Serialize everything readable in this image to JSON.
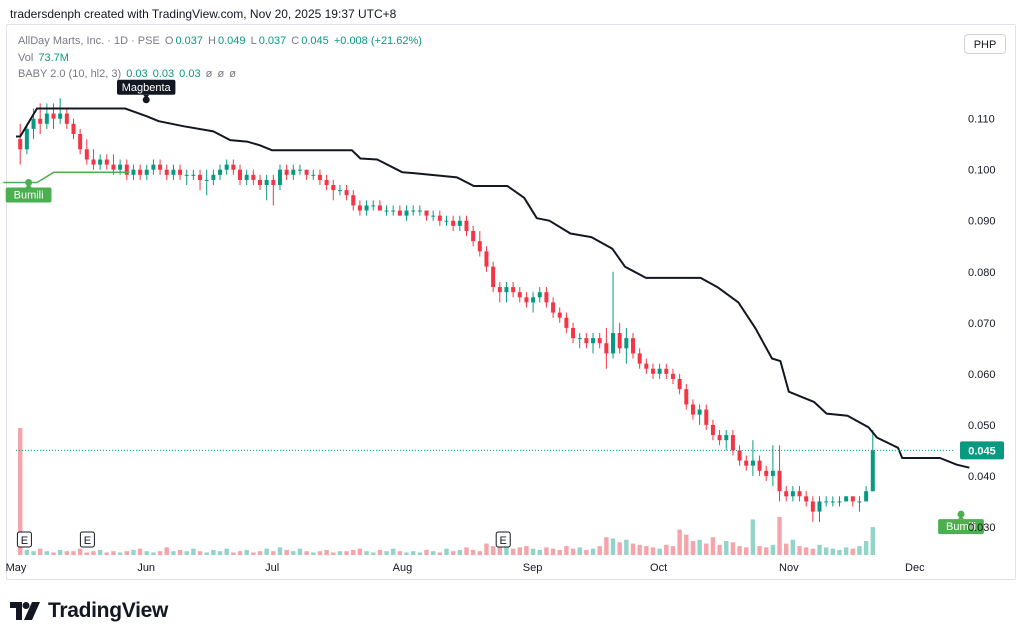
{
  "header": {
    "creator": "tradersdenph created with TradingView.com, Nov 20, 2025 19:37 UTC+8"
  },
  "legend": {
    "symbol": "AllDay Marts, Inc. · 1D · PSE",
    "open_label": "O",
    "open": "0.037",
    "high_label": "H",
    "high": "0.049",
    "low_label": "L",
    "low": "0.037",
    "close_label": "C",
    "close": "0.045",
    "change": "+0.008 (+21.62%)",
    "vol_label": "Vol",
    "vol": "73.7M",
    "indicator_name": "BABY 2.0 (10, hl2, 3)",
    "indicator_v1": "0.03",
    "indicator_v2": "0.03",
    "indicator_v3": "0.03",
    "indicator_na": [
      "ø",
      "ø",
      "ø"
    ]
  },
  "currency_button": "PHP",
  "annotations": {
    "magbenta": "Magbenta",
    "bumili_left": "Bumili",
    "bumili_right": "Bumili",
    "earnings_marker": "E"
  },
  "brand": {
    "name": "TradingView"
  },
  "colors": {
    "up": "#089981",
    "down": "#f23645",
    "up_volume": "#93d4c8",
    "down_volume": "#f5a4ab",
    "line": "#131722",
    "buy_green": "#4caf50",
    "price_tag": "#089981"
  },
  "chart_data": {
    "type": "candlestick",
    "title": "",
    "y_axis": {
      "ticks": [
        0.03,
        0.04,
        0.05,
        0.06,
        0.07,
        0.08,
        0.09,
        0.1,
        0.11
      ],
      "tick_labels": [
        "0.030",
        "0.040",
        "0.050",
        "0.060",
        "0.070",
        "0.080",
        "0.090",
        "0.100",
        "0.110"
      ],
      "range": [
        0.0245,
        0.1215
      ]
    },
    "x_axis": {
      "range_days": [
        0,
        220
      ],
      "months": [
        {
          "label": "May",
          "day": 0
        },
        {
          "label": "Jun",
          "day": 31
        },
        {
          "label": "Jul",
          "day": 61
        },
        {
          "label": "Aug",
          "day": 92
        },
        {
          "label": "Sep",
          "day": 123
        },
        {
          "label": "Oct",
          "day": 153
        },
        {
          "label": "Nov",
          "day": 184
        },
        {
          "label": "Dec",
          "day": 214
        }
      ]
    },
    "last_price": 0.045,
    "last_price_label": "0.045",
    "candles": [
      [
        0.106,
        0.109,
        0.101,
        0.104
      ],
      [
        0.104,
        0.109,
        0.103,
        0.108
      ],
      [
        0.108,
        0.112,
        0.106,
        0.11
      ],
      [
        0.11,
        0.113,
        0.107,
        0.109
      ],
      [
        0.109,
        0.113,
        0.108,
        0.111
      ],
      [
        0.111,
        0.113,
        0.108,
        0.11
      ],
      [
        0.11,
        0.114,
        0.109,
        0.111
      ],
      [
        0.111,
        0.112,
        0.108,
        0.109
      ],
      [
        0.109,
        0.11,
        0.106,
        0.107
      ],
      [
        0.107,
        0.108,
        0.103,
        0.104
      ],
      [
        0.104,
        0.106,
        0.101,
        0.102
      ],
      [
        0.102,
        0.104,
        0.1,
        0.101
      ],
      [
        0.101,
        0.103,
        0.1,
        0.102
      ],
      [
        0.102,
        0.103,
        0.1,
        0.101
      ],
      [
        0.101,
        0.103,
        0.099,
        0.1
      ],
      [
        0.1,
        0.102,
        0.099,
        0.101
      ],
      [
        0.101,
        0.102,
        0.098,
        0.099
      ],
      [
        0.099,
        0.101,
        0.098,
        0.1
      ],
      [
        0.1,
        0.101,
        0.098,
        0.099
      ],
      [
        0.099,
        0.101,
        0.098,
        0.1
      ],
      [
        0.1,
        0.102,
        0.099,
        0.101
      ],
      [
        0.101,
        0.102,
        0.099,
        0.1
      ],
      [
        0.1,
        0.101,
        0.098,
        0.099
      ],
      [
        0.099,
        0.101,
        0.098,
        0.1
      ],
      [
        0.1,
        0.101,
        0.098,
        0.099
      ],
      [
        0.099,
        0.1,
        0.097,
        0.099
      ],
      [
        0.099,
        0.1,
        0.098,
        0.099
      ],
      [
        0.099,
        0.1,
        0.096,
        0.098
      ],
      [
        0.098,
        0.1,
        0.095,
        0.098
      ],
      [
        0.098,
        0.1,
        0.097,
        0.099
      ],
      [
        0.099,
        0.101,
        0.098,
        0.1
      ],
      [
        0.1,
        0.102,
        0.099,
        0.101
      ],
      [
        0.101,
        0.102,
        0.099,
        0.1
      ],
      [
        0.1,
        0.101,
        0.097,
        0.098
      ],
      [
        0.098,
        0.1,
        0.097,
        0.099
      ],
      [
        0.099,
        0.1,
        0.097,
        0.098
      ],
      [
        0.098,
        0.099,
        0.096,
        0.097
      ],
      [
        0.097,
        0.099,
        0.094,
        0.098
      ],
      [
        0.098,
        0.099,
        0.093,
        0.097
      ],
      [
        0.097,
        0.101,
        0.096,
        0.1
      ],
      [
        0.1,
        0.101,
        0.098,
        0.099
      ],
      [
        0.099,
        0.101,
        0.098,
        0.1
      ],
      [
        0.1,
        0.101,
        0.099,
        0.1
      ],
      [
        0.1,
        0.1,
        0.098,
        0.099
      ],
      [
        0.099,
        0.1,
        0.098,
        0.099
      ],
      [
        0.099,
        0.1,
        0.097,
        0.098
      ],
      [
        0.098,
        0.099,
        0.096,
        0.097
      ],
      [
        0.097,
        0.098,
        0.094,
        0.096
      ],
      [
        0.096,
        0.097,
        0.095,
        0.096
      ],
      [
        0.096,
        0.097,
        0.094,
        0.095
      ],
      [
        0.095,
        0.096,
        0.092,
        0.093
      ],
      [
        0.093,
        0.094,
        0.091,
        0.092
      ],
      [
        0.092,
        0.094,
        0.091,
        0.093
      ],
      [
        0.093,
        0.094,
        0.092,
        0.093
      ],
      [
        0.093,
        0.094,
        0.092,
        0.092
      ],
      [
        0.092,
        0.093,
        0.091,
        0.092
      ],
      [
        0.092,
        0.093,
        0.091,
        0.092
      ],
      [
        0.092,
        0.093,
        0.091,
        0.091
      ],
      [
        0.091,
        0.093,
        0.09,
        0.092
      ],
      [
        0.092,
        0.093,
        0.091,
        0.092
      ],
      [
        0.092,
        0.093,
        0.091,
        0.092
      ],
      [
        0.092,
        0.092,
        0.09,
        0.091
      ],
      [
        0.091,
        0.092,
        0.09,
        0.091
      ],
      [
        0.091,
        0.092,
        0.089,
        0.09
      ],
      [
        0.09,
        0.091,
        0.089,
        0.09
      ],
      [
        0.09,
        0.091,
        0.088,
        0.089
      ],
      [
        0.089,
        0.091,
        0.088,
        0.09
      ],
      [
        0.09,
        0.091,
        0.087,
        0.088
      ],
      [
        0.088,
        0.089,
        0.085,
        0.086
      ],
      [
        0.086,
        0.088,
        0.083,
        0.084
      ],
      [
        0.084,
        0.085,
        0.08,
        0.081
      ],
      [
        0.081,
        0.082,
        0.076,
        0.077
      ],
      [
        0.077,
        0.078,
        0.074,
        0.076
      ],
      [
        0.076,
        0.078,
        0.074,
        0.077
      ],
      [
        0.077,
        0.078,
        0.075,
        0.076
      ],
      [
        0.076,
        0.077,
        0.074,
        0.075
      ],
      [
        0.075,
        0.076,
        0.073,
        0.074
      ],
      [
        0.074,
        0.076,
        0.072,
        0.075
      ],
      [
        0.075,
        0.077,
        0.074,
        0.076
      ],
      [
        0.076,
        0.077,
        0.073,
        0.074
      ],
      [
        0.074,
        0.075,
        0.071,
        0.072
      ],
      [
        0.072,
        0.073,
        0.07,
        0.071
      ],
      [
        0.071,
        0.072,
        0.068,
        0.069
      ],
      [
        0.069,
        0.07,
        0.066,
        0.067
      ],
      [
        0.067,
        0.068,
        0.065,
        0.067
      ],
      [
        0.067,
        0.068,
        0.065,
        0.066
      ],
      [
        0.066,
        0.068,
        0.064,
        0.067
      ],
      [
        0.067,
        0.068,
        0.065,
        0.066
      ],
      [
        0.066,
        0.069,
        0.061,
        0.064
      ],
      [
        0.064,
        0.08,
        0.063,
        0.068
      ],
      [
        0.068,
        0.07,
        0.064,
        0.065
      ],
      [
        0.065,
        0.069,
        0.062,
        0.067
      ],
      [
        0.067,
        0.068,
        0.063,
        0.064
      ],
      [
        0.064,
        0.065,
        0.061,
        0.062
      ],
      [
        0.062,
        0.063,
        0.06,
        0.061
      ],
      [
        0.061,
        0.062,
        0.059,
        0.06
      ],
      [
        0.06,
        0.062,
        0.059,
        0.061
      ],
      [
        0.061,
        0.062,
        0.059,
        0.06
      ],
      [
        0.06,
        0.061,
        0.058,
        0.059
      ],
      [
        0.059,
        0.06,
        0.056,
        0.057
      ],
      [
        0.057,
        0.058,
        0.053,
        0.054
      ],
      [
        0.054,
        0.055,
        0.051,
        0.052
      ],
      [
        0.052,
        0.054,
        0.05,
        0.053
      ],
      [
        0.053,
        0.054,
        0.049,
        0.05
      ],
      [
        0.05,
        0.051,
        0.047,
        0.048
      ],
      [
        0.048,
        0.049,
        0.046,
        0.047
      ],
      [
        0.047,
        0.049,
        0.045,
        0.048
      ],
      [
        0.048,
        0.049,
        0.044,
        0.045
      ],
      [
        0.045,
        0.046,
        0.042,
        0.043
      ],
      [
        0.043,
        0.044,
        0.041,
        0.042
      ],
      [
        0.042,
        0.047,
        0.04,
        0.043
      ],
      [
        0.043,
        0.044,
        0.04,
        0.041
      ],
      [
        0.041,
        0.042,
        0.039,
        0.04
      ],
      [
        0.04,
        0.046,
        0.038,
        0.041
      ],
      [
        0.041,
        0.046,
        0.035,
        0.037
      ],
      [
        0.037,
        0.038,
        0.035,
        0.036
      ],
      [
        0.036,
        0.038,
        0.035,
        0.037
      ],
      [
        0.037,
        0.038,
        0.035,
        0.036
      ],
      [
        0.036,
        0.037,
        0.034,
        0.035
      ],
      [
        0.035,
        0.036,
        0.031,
        0.033
      ],
      [
        0.033,
        0.036,
        0.031,
        0.035
      ],
      [
        0.035,
        0.036,
        0.034,
        0.035
      ],
      [
        0.035,
        0.036,
        0.034,
        0.035
      ],
      [
        0.035,
        0.036,
        0.034,
        0.035
      ],
      [
        0.035,
        0.036,
        0.035,
        0.036
      ],
      [
        0.036,
        0.036,
        0.034,
        0.035
      ],
      [
        0.035,
        0.036,
        0.033,
        0.035
      ],
      [
        0.035,
        0.038,
        0.035,
        0.037
      ],
      [
        0.037,
        0.049,
        0.037,
        0.045
      ]
    ],
    "volume_relative": [
      1.0,
      0.04,
      0.03,
      0.05,
      0.03,
      0.02,
      0.04,
      0.03,
      0.03,
      0.05,
      0.02,
      0.03,
      0.04,
      0.02,
      0.03,
      0.02,
      0.03,
      0.04,
      0.05,
      0.03,
      0.02,
      0.03,
      0.06,
      0.03,
      0.04,
      0.03,
      0.05,
      0.03,
      0.02,
      0.04,
      0.03,
      0.05,
      0.02,
      0.03,
      0.04,
      0.02,
      0.03,
      0.05,
      0.03,
      0.06,
      0.04,
      0.03,
      0.05,
      0.03,
      0.02,
      0.03,
      0.04,
      0.02,
      0.03,
      0.03,
      0.04,
      0.05,
      0.03,
      0.02,
      0.04,
      0.03,
      0.05,
      0.03,
      0.02,
      0.03,
      0.02,
      0.04,
      0.03,
      0.02,
      0.05,
      0.03,
      0.04,
      0.06,
      0.04,
      0.03,
      0.09,
      0.07,
      0.06,
      0.08,
      0.05,
      0.06,
      0.07,
      0.05,
      0.04,
      0.06,
      0.05,
      0.04,
      0.07,
      0.05,
      0.06,
      0.04,
      0.05,
      0.07,
      0.14,
      0.13,
      0.1,
      0.12,
      0.09,
      0.08,
      0.07,
      0.06,
      0.05,
      0.08,
      0.07,
      0.2,
      0.16,
      0.11,
      0.12,
      0.09,
      0.14,
      0.08,
      0.11,
      0.1,
      0.07,
      0.06,
      0.28,
      0.07,
      0.06,
      0.08,
      0.3,
      0.09,
      0.12,
      0.07,
      0.06,
      0.05,
      0.08,
      0.06,
      0.05,
      0.04,
      0.06,
      0.05,
      0.07,
      0.11,
      0.22
    ],
    "sell_line": [
      [
        0,
        0.1065
      ],
      [
        1,
        0.1065
      ],
      [
        5,
        0.112
      ],
      [
        26,
        0.112
      ],
      [
        31,
        0.1105
      ],
      [
        34,
        0.1095
      ],
      [
        40,
        0.1085
      ],
      [
        47,
        0.1075
      ],
      [
        51,
        0.1058
      ],
      [
        55,
        0.1055
      ],
      [
        58,
        0.1048
      ],
      [
        61,
        0.1038
      ],
      [
        80,
        0.1038
      ],
      [
        82,
        0.1022
      ],
      [
        86,
        0.102
      ],
      [
        92,
        0.0995
      ],
      [
        95,
        0.0993
      ],
      [
        105,
        0.0985
      ],
      [
        109,
        0.0968
      ],
      [
        117,
        0.0968
      ],
      [
        121,
        0.0945
      ],
      [
        124,
        0.0905
      ],
      [
        127,
        0.09
      ],
      [
        132,
        0.0875
      ],
      [
        137,
        0.0868
      ],
      [
        142,
        0.0845
      ],
      [
        145,
        0.081
      ],
      [
        150,
        0.0788
      ],
      [
        163,
        0.0788
      ],
      [
        167,
        0.077
      ],
      [
        172,
        0.074
      ],
      [
        176,
        0.069
      ],
      [
        180,
        0.063
      ],
      [
        182,
        0.0625
      ],
      [
        184,
        0.0565
      ],
      [
        190,
        0.0545
      ],
      [
        193,
        0.0522
      ],
      [
        198,
        0.0518
      ],
      [
        203,
        0.0495
      ],
      [
        205,
        0.0475
      ],
      [
        210,
        0.0455
      ],
      [
        211,
        0.0435
      ],
      [
        220,
        0.0435
      ],
      [
        224,
        0.0422
      ],
      [
        227,
        0.0416
      ]
    ],
    "buy_line": [
      [
        -3,
        0.0975
      ],
      [
        5,
        0.0975
      ],
      [
        9,
        0.0995
      ],
      [
        27,
        0.0995
      ]
    ],
    "markers": [
      {
        "text": "Magbenta",
        "day": 31,
        "price": 0.1137,
        "color": "#131722",
        "anchor": "above"
      },
      {
        "text": "Bumili",
        "day": 3,
        "price": 0.0975,
        "color": "#4caf50",
        "anchor": "below"
      },
      {
        "text": "Bumili",
        "day": 225,
        "price": 0.0325,
        "color": "#4caf50",
        "anchor": "below"
      }
    ],
    "earnings_days": [
      2,
      17,
      116
    ]
  }
}
